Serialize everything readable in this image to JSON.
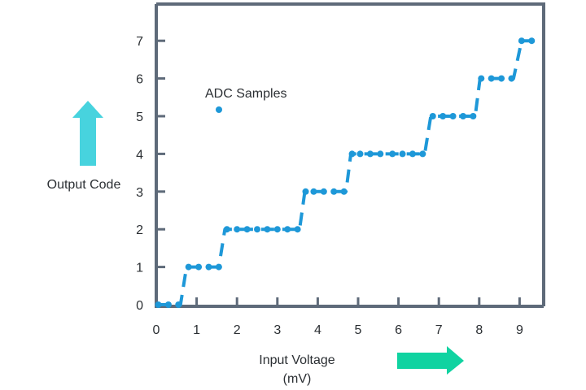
{
  "chart_data": {
    "type": "scatter",
    "xlabel_line1": "Input Voltage",
    "xlabel_line2": "(mV)",
    "ylabel": "Output Code",
    "legend": {
      "label": "ADC Samples",
      "placement": "upper-left"
    },
    "xlim": [
      0,
      9.5
    ],
    "ylim": [
      0,
      7.3
    ],
    "xticks": [
      "0",
      "1",
      "2",
      "3",
      "4",
      "5",
      "6",
      "7",
      "8",
      "9"
    ],
    "yticks": [
      "0",
      "1",
      "2",
      "3",
      "4",
      "5",
      "6",
      "7"
    ],
    "series": [
      {
        "points": [
          [
            0.05,
            0
          ],
          [
            0.3,
            0
          ],
          [
            0.55,
            0
          ],
          [
            0.8,
            1
          ],
          [
            1.05,
            1
          ],
          [
            1.3,
            1
          ],
          [
            1.55,
            1
          ],
          [
            1.75,
            2
          ],
          [
            2.0,
            2
          ],
          [
            2.25,
            2
          ],
          [
            2.5,
            2
          ],
          [
            2.75,
            2
          ],
          [
            3.0,
            2
          ],
          [
            3.25,
            2
          ],
          [
            3.5,
            2
          ],
          [
            3.7,
            3
          ],
          [
            3.9,
            3
          ],
          [
            4.15,
            3
          ],
          [
            4.4,
            3
          ],
          [
            4.65,
            3
          ],
          [
            4.85,
            4
          ],
          [
            5.05,
            4
          ],
          [
            5.3,
            4
          ],
          [
            5.55,
            4
          ],
          [
            5.85,
            4
          ],
          [
            6.1,
            4
          ],
          [
            6.35,
            4
          ],
          [
            6.6,
            4
          ],
          [
            6.85,
            5
          ],
          [
            7.1,
            5
          ],
          [
            7.35,
            5
          ],
          [
            7.6,
            5
          ],
          [
            7.85,
            5
          ],
          [
            8.05,
            6
          ],
          [
            8.3,
            6
          ],
          [
            8.55,
            6
          ],
          [
            8.8,
            6
          ],
          [
            9.05,
            7
          ],
          [
            9.3,
            7
          ]
        ]
      }
    ],
    "trend": {
      "style": "dashed",
      "points": [
        [
          0.0,
          0
        ],
        [
          0.6,
          0
        ],
        [
          0.75,
          1
        ],
        [
          1.55,
          1
        ],
        [
          1.7,
          2
        ],
        [
          3.55,
          2
        ],
        [
          3.68,
          3
        ],
        [
          4.7,
          3
        ],
        [
          4.82,
          4
        ],
        [
          6.65,
          4
        ],
        [
          6.8,
          5
        ],
        [
          7.9,
          5
        ],
        [
          8.02,
          6
        ],
        [
          8.85,
          6
        ],
        [
          9.05,
          7
        ],
        [
          9.35,
          7
        ]
      ]
    },
    "colors": {
      "axis": "#5e6a79",
      "series": "#1e98d8",
      "arrow_up": "#47d3de",
      "arrow_right": "#10d3a1",
      "text": "#2b2f33"
    },
    "decorations": [
      "up-arrow",
      "right-arrow"
    ]
  }
}
